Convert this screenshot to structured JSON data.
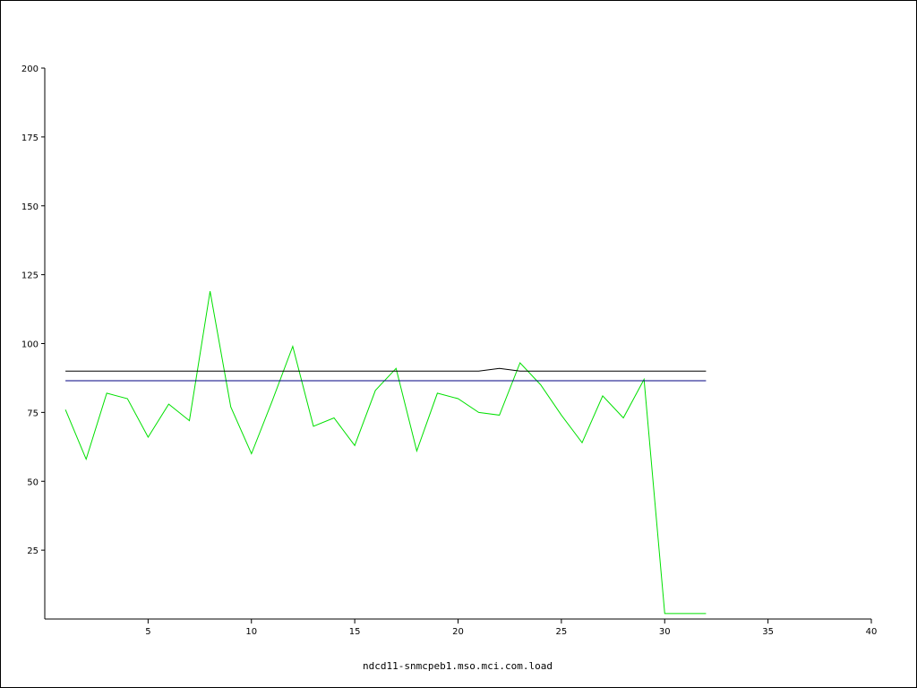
{
  "chart_data": {
    "type": "line",
    "title": "ndcd11-snmcpeb1.mso.mci.com.load",
    "xlabel": "",
    "ylabel": "",
    "xlim": [
      0,
      40
    ],
    "ylim": [
      0,
      200
    ],
    "x_ticks": [
      5,
      10,
      15,
      20,
      25,
      30,
      35,
      40
    ],
    "y_ticks": [
      25,
      50,
      75,
      100,
      125,
      150,
      175,
      200
    ],
    "grid": false,
    "series": [
      {
        "color": "#00e000",
        "x": [
          1,
          2,
          3,
          4,
          5,
          6,
          7,
          8,
          9,
          10,
          11,
          12,
          13,
          14,
          15,
          16,
          17,
          18,
          19,
          20,
          21,
          22,
          23,
          24,
          25,
          26,
          27,
          28,
          29,
          30,
          31,
          32
        ],
        "y": [
          76,
          58,
          82,
          80,
          66,
          78,
          72,
          119,
          77,
          60,
          79,
          99,
          70,
          73,
          63,
          83,
          91,
          61,
          82,
          80,
          75,
          74,
          93,
          85,
          74,
          64,
          81,
          73,
          87,
          2,
          2,
          2
        ]
      },
      {
        "color": "#000000",
        "x": [
          1,
          20,
          21,
          22,
          23,
          24,
          32
        ],
        "y": [
          90,
          90,
          90,
          91,
          90,
          90,
          90
        ]
      },
      {
        "color": "#000080",
        "x": [
          1,
          32
        ],
        "y": [
          86.5,
          86.5
        ]
      },
      {
        "color": "#ff0000",
        "x": [
          1,
          32
        ],
        "y": [
          0,
          0
        ]
      }
    ]
  }
}
